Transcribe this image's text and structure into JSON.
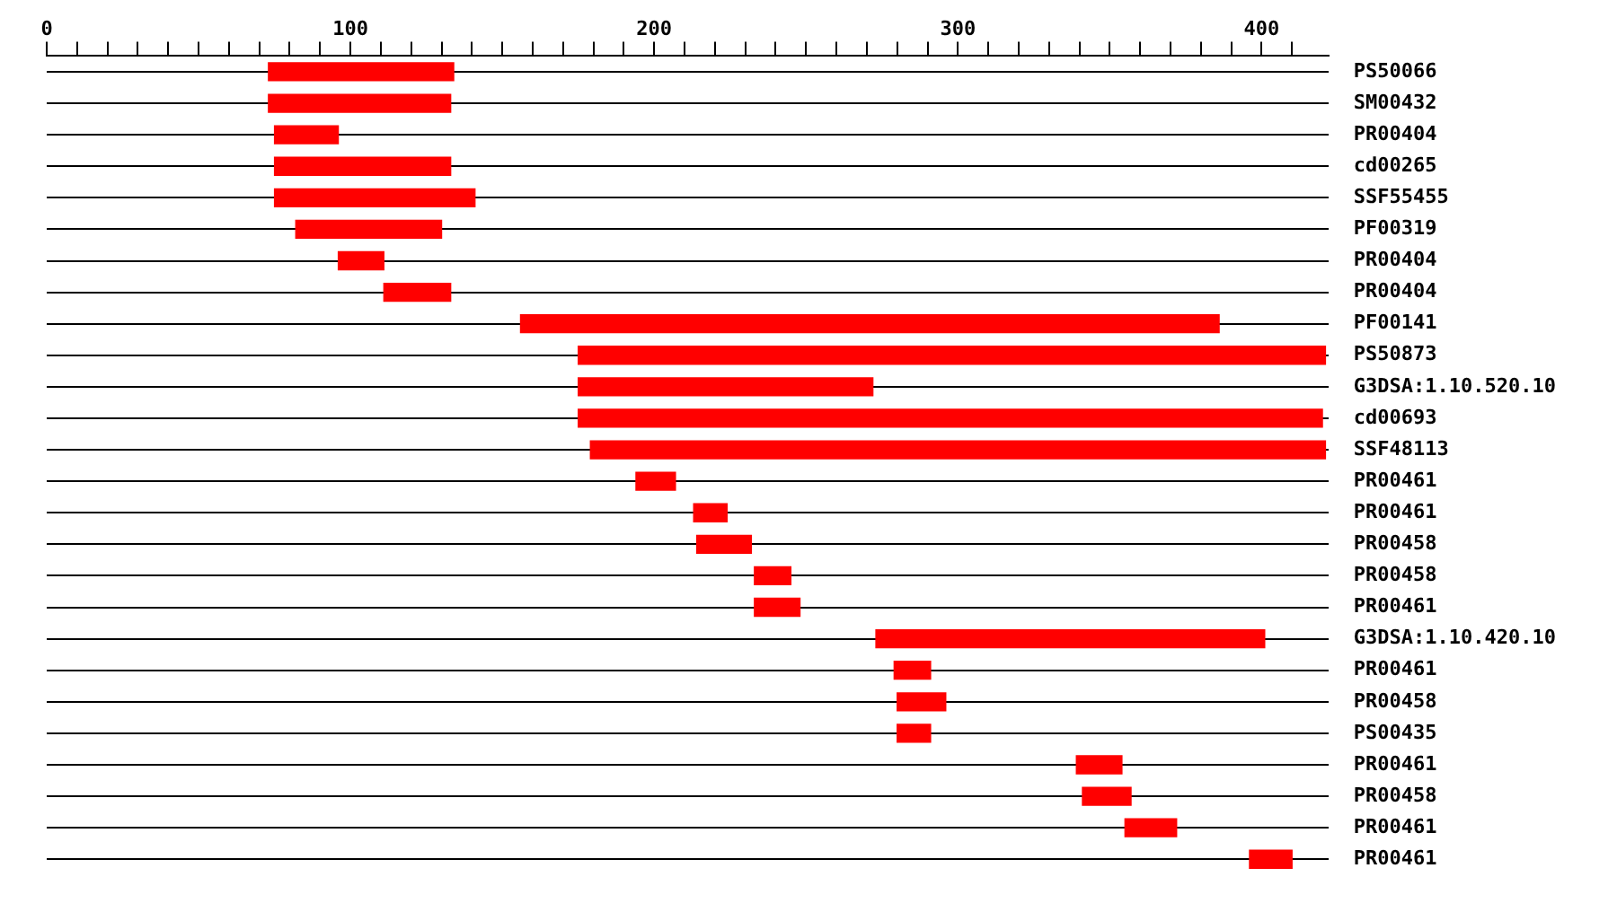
{
  "chart_data": {
    "type": "bar",
    "orientation": "horizontal",
    "categories": [
      "PS50066",
      "SM00432",
      "PR00404",
      "cd00265",
      "SSF55455",
      "PF00319",
      "PR00404",
      "PR00404",
      "PF00141",
      "PS50873",
      "G3DSA:1.10.520.10",
      "cd00693",
      "SSF48113",
      "PR00461",
      "PR00461",
      "PR00458",
      "PR00458",
      "PR00461",
      "G3DSA:1.10.420.10",
      "PR00461",
      "PR00458",
      "PS00435",
      "PR00461",
      "PR00458",
      "PR00461",
      "PR00461"
    ],
    "base": [
      73,
      73,
      75,
      75,
      75,
      82,
      96,
      111,
      156,
      175,
      175,
      175,
      179,
      194,
      213,
      214,
      233,
      233,
      273,
      279,
      280,
      280,
      339,
      341,
      355,
      396
    ],
    "values": [
      61,
      60,
      21,
      58,
      66,
      48,
      15,
      22,
      230,
      246,
      97,
      245,
      242,
      13,
      11,
      18,
      12,
      15,
      128,
      12,
      16,
      11,
      15,
      16,
      17,
      14
    ],
    "color": "#ff0000",
    "xlim": [
      0,
      422
    ],
    "xticks": [
      0,
      {
        "value": 10,
        "label": null
      },
      {
        "value": 20,
        "label": null
      },
      {
        "value": 30,
        "label": null
      },
      {
        "value": 40,
        "label": null
      },
      {
        "value": 50,
        "label": null
      },
      {
        "value": 60,
        "label": null
      },
      {
        "value": 70,
        "label": null
      },
      {
        "value": 80,
        "label": null
      },
      {
        "value": 90,
        "label": null
      },
      100,
      {
        "value": 110,
        "label": null
      },
      {
        "value": 120,
        "label": null
      },
      {
        "value": 130,
        "label": null
      },
      {
        "value": 140,
        "label": null
      },
      {
        "value": 150,
        "label": null
      },
      {
        "value": 160,
        "label": null
      },
      {
        "value": 170,
        "label": null
      },
      {
        "value": 180,
        "label": null
      },
      {
        "value": 190,
        "label": null
      },
      200,
      {
        "value": 210,
        "label": null
      },
      {
        "value": 220,
        "label": null
      },
      {
        "value": 230,
        "label": null
      },
      {
        "value": 240,
        "label": null
      },
      {
        "value": 250,
        "label": null
      },
      {
        "value": 260,
        "label": null
      },
      {
        "value": 270,
        "label": null
      },
      {
        "value": 280,
        "label": null
      },
      {
        "value": 290,
        "label": null
      },
      300,
      {
        "value": 310,
        "label": null
      },
      {
        "value": 320,
        "label": null
      },
      {
        "value": 330,
        "label": null
      },
      {
        "value": 340,
        "label": null
      },
      {
        "value": 350,
        "label": null
      },
      {
        "value": 360,
        "label": null
      },
      {
        "value": 370,
        "label": null
      },
      {
        "value": 380,
        "label": null
      },
      {
        "value": 390,
        "label": null
      },
      400,
      {
        "value": 410,
        "label": null
      }
    ],
    "grid": "y",
    "legend": false
  }
}
